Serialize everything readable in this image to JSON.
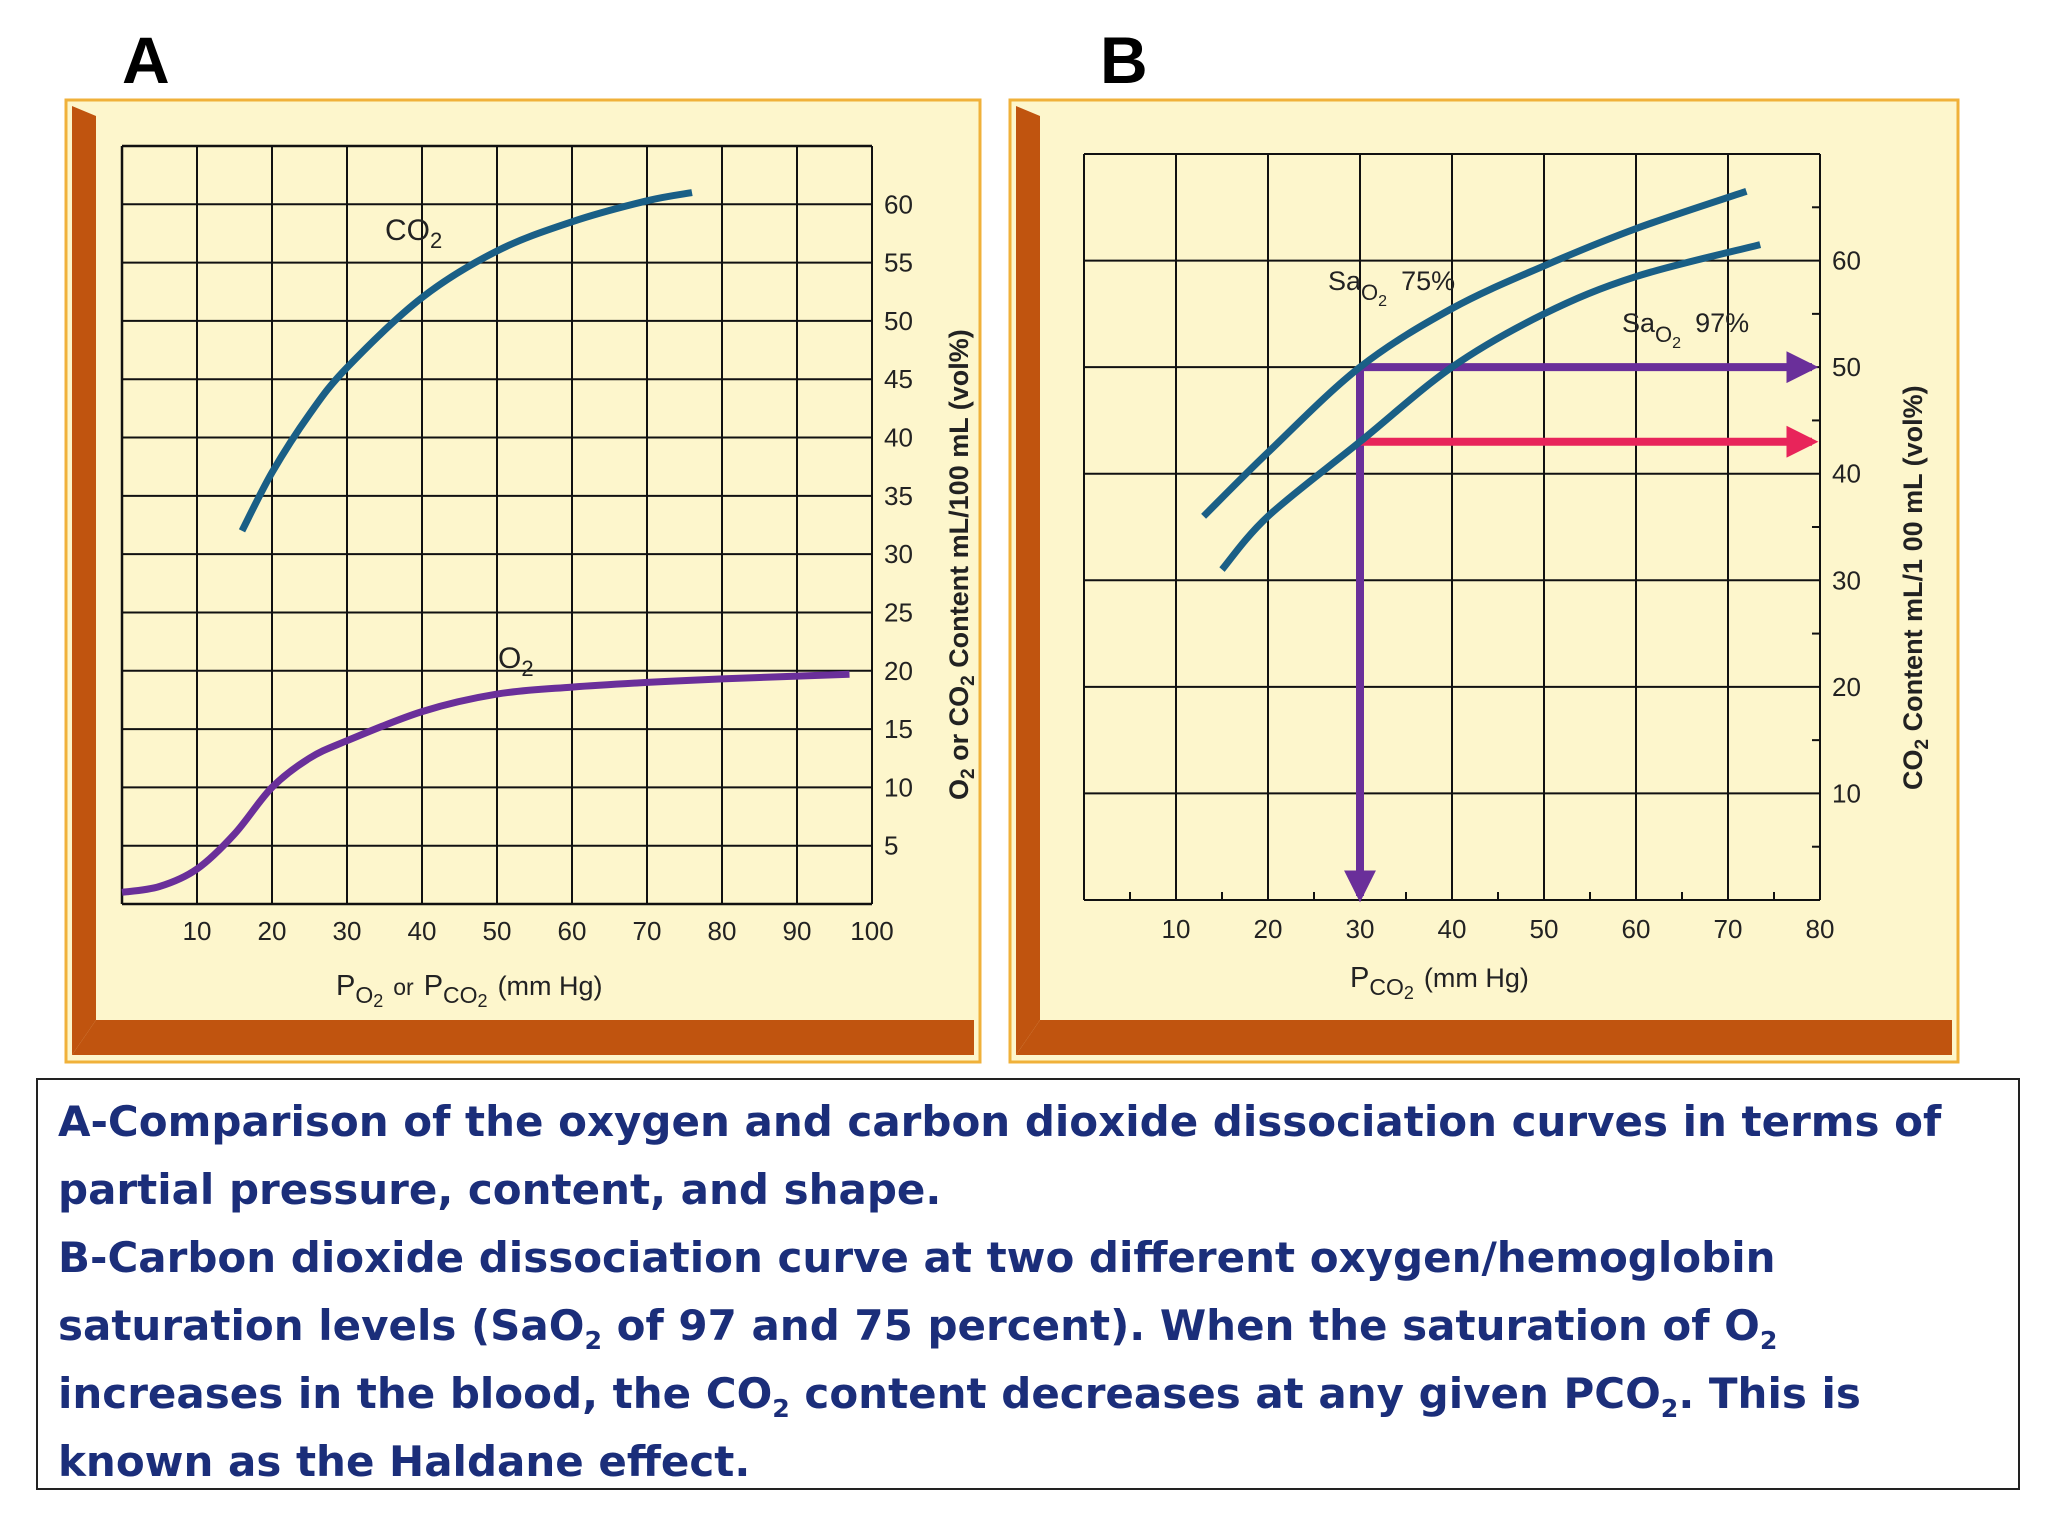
{
  "panels": {
    "a_letter": "A",
    "b_letter": "B"
  },
  "chart_data": [
    {
      "type": "line",
      "panel": "A",
      "xlabel": "P O2 or P CO2 (mm Hg)",
      "ylabel": "O2 or CO2 Content mL/100 mL (vol%)",
      "xlim": [
        0,
        100
      ],
      "ylim": [
        0,
        65
      ],
      "x_ticks": [
        "10",
        "20",
        "30",
        "40",
        "50",
        "60",
        "70",
        "80",
        "90",
        "100"
      ],
      "y_ticks": [
        "5",
        "10",
        "15",
        "20",
        "25",
        "30",
        "35",
        "40",
        "45",
        "50",
        "55",
        "60"
      ],
      "grid": true,
      "series": [
        {
          "name": "CO2",
          "color": "#1a5f86",
          "points": [
            [
              16,
              32
            ],
            [
              20,
              37
            ],
            [
              25,
              42
            ],
            [
              30,
              46
            ],
            [
              40,
              52
            ],
            [
              50,
              56
            ],
            [
              60,
              58.5
            ],
            [
              70,
              60.3
            ],
            [
              76,
              61
            ]
          ]
        },
        {
          "name": "O2",
          "color": "#6a2f9a",
          "points": [
            [
              0,
              1
            ],
            [
              5,
              1.5
            ],
            [
              10,
              3
            ],
            [
              15,
              6
            ],
            [
              20,
              10
            ],
            [
              25,
              12.5
            ],
            [
              30,
              14
            ],
            [
              40,
              16.5
            ],
            [
              50,
              18
            ],
            [
              60,
              18.6
            ],
            [
              70,
              19
            ],
            [
              80,
              19.3
            ],
            [
              97,
              19.7
            ]
          ]
        }
      ]
    },
    {
      "type": "line",
      "panel": "B",
      "xlabel": "P CO2 (mm Hg)",
      "ylabel": "CO2 Content mL/100 mL (vol%)",
      "xlim": [
        0,
        80
      ],
      "ylim": [
        0,
        70
      ],
      "x_ticks": [
        "10",
        "20",
        "30",
        "40",
        "50",
        "60",
        "70",
        "80"
      ],
      "y_ticks": [
        "10",
        "20",
        "30",
        "40",
        "50",
        "60"
      ],
      "grid": true,
      "series": [
        {
          "name": "SaO2 75%",
          "color": "#1a5f86",
          "points": [
            [
              13,
              36
            ],
            [
              20,
              42
            ],
            [
              30,
              50
            ],
            [
              40,
              55.5
            ],
            [
              50,
              59.5
            ],
            [
              60,
              63
            ],
            [
              72,
              66.5
            ]
          ]
        },
        {
          "name": "SaO2 97%",
          "color": "#1a5f86",
          "points": [
            [
              15,
              31
            ],
            [
              20,
              36
            ],
            [
              30,
              43
            ],
            [
              40,
              50
            ],
            [
              50,
              55
            ],
            [
              60,
              58.5
            ],
            [
              73.5,
              61.5
            ]
          ]
        }
      ],
      "annotations": [
        {
          "label": "SaO2 75%",
          "x": 30,
          "y": 50,
          "arrow_color": "#6a2f9a",
          "arrow_to": "right-axis and x-axis"
        },
        {
          "label": "SaO2 97%",
          "x": 30,
          "y": 43,
          "arrow_color": "#e8245a",
          "arrow_to": "right-axis"
        }
      ]
    }
  ],
  "labels": {
    "a_co2": "CO",
    "a_co2_sub": "2",
    "a_o2": "O",
    "a_o2_sub": "2",
    "a_x_p1": "P",
    "a_x_o2": "O",
    "a_x_o2_sub": "2",
    "a_x_or": "or",
    "a_x_p2": "P",
    "a_x_co2": "CO",
    "a_x_co2_sub": "2",
    "a_x_unit": "(mm Hg)",
    "a_y_o2": "O",
    "a_y_sub1": "2",
    "a_y_or": " or CO",
    "a_y_sub2": "2",
    "a_y_rest": " Content mL/100 mL (vol%)",
    "b_sao2_75_sa": "Sa",
    "b_sao2_75_o": "O",
    "b_sao2_75_sub": "2",
    "b_sao2_75_pct": "75%",
    "b_sao2_97_sa": "Sa",
    "b_sao2_97_o": "O",
    "b_sao2_97_sub": "2",
    "b_sao2_97_pct": "97%",
    "b_x_p": "P",
    "b_x_co": "CO",
    "b_x_sub": "2",
    "b_x_unit": "(mm Hg)",
    "b_y_co": "CO",
    "b_y_sub": "2",
    "b_y_rest": " Content mL/1 00 mL (vol%)"
  },
  "caption": {
    "a_text": "A-Comparison of the oxygen and carbon dioxide dissociation curves in terms of partial pressure, content, and shape.",
    "b_line1": "B-Carbon dioxide dissociation curve at two different oxygen/hemoglobin saturation levels (SaO",
    "b_sub1": "2",
    "b_line2": " of 97 and 75 percent). When the saturation of O",
    "b_sub2": "2",
    "b_line3": " increases in the blood, the CO",
    "b_sub3": "2",
    "b_line4": " content decreases at any given PCO",
    "b_sub4": "2",
    "b_line5": ". This is known as the Haldane effect."
  },
  "colors": {
    "panel_bg": "#fdf6cc",
    "frame_orange": "#c0540f",
    "frame_border": "#f0b13a",
    "co2_curve": "#1a5f86",
    "o2_curve": "#6a2f9a",
    "arrow_purple": "#6a2f9a",
    "arrow_pink": "#e8245a",
    "caption_text": "#1b2e7a"
  }
}
